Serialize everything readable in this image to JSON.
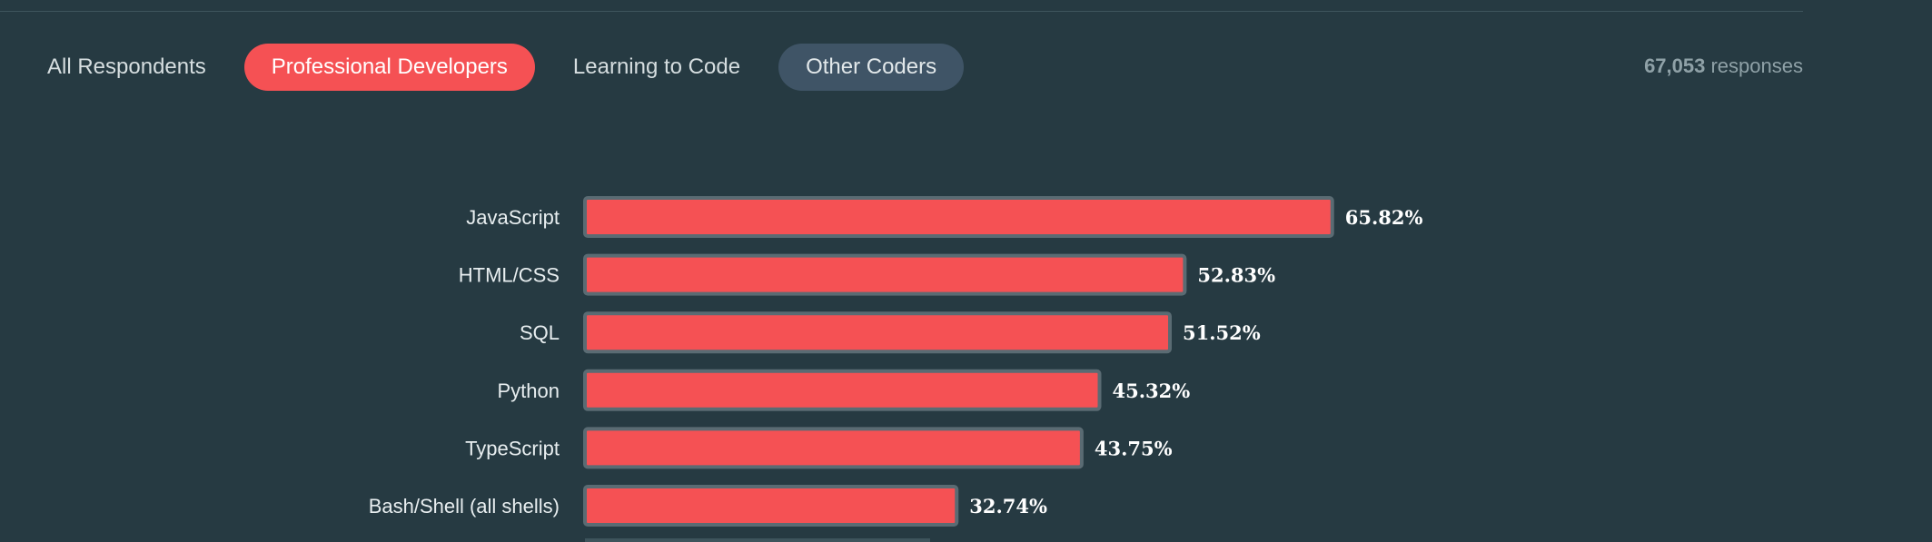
{
  "filters": {
    "tabs": [
      {
        "label": "All Respondents",
        "state": "default"
      },
      {
        "label": "Professional Developers",
        "state": "active"
      },
      {
        "label": "Learning to Code",
        "state": "default"
      },
      {
        "label": "Other Coders",
        "state": "secondary"
      }
    ]
  },
  "summary": {
    "count": "67,053",
    "unit": "responses"
  },
  "colors": {
    "background": "#263a42",
    "accent": "#f55154",
    "secondary_tab": "#3f5466"
  },
  "chart_data": {
    "type": "bar",
    "orientation": "horizontal",
    "categories": [
      "JavaScript",
      "HTML/CSS",
      "SQL",
      "Python",
      "TypeScript",
      "Bash/Shell (all shells)"
    ],
    "values": [
      65.82,
      52.83,
      51.52,
      45.32,
      43.75,
      32.74
    ],
    "value_labels": [
      "65.82%",
      "52.83%",
      "51.52%",
      "45.32%",
      "43.75%",
      "32.74%"
    ],
    "unit": "%",
    "xlim": [
      0,
      100
    ],
    "grid": false,
    "legend": "none"
  }
}
